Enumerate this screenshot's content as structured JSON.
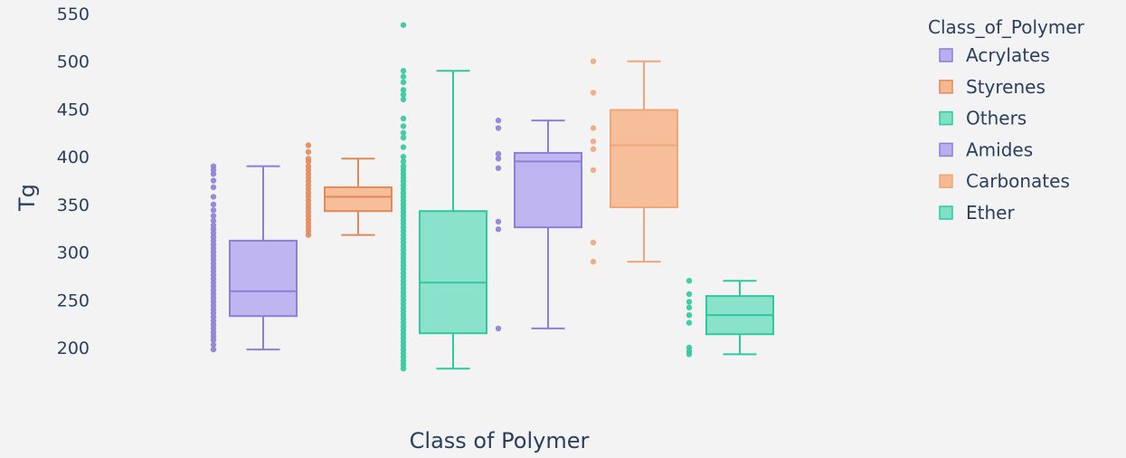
{
  "chart_data": {
    "type": "box",
    "xlabel": "Class of Polymer",
    "ylabel": "Tg",
    "ylim": [
      175,
      555
    ],
    "yticks": [
      200,
      250,
      300,
      350,
      400,
      450,
      500,
      550
    ],
    "grid": false,
    "legend": {
      "title": "Class_of_Polymer",
      "position": "top-right",
      "items": [
        "Acrylates",
        "Styrenes",
        "Others",
        "Amides",
        "Carbonates",
        "Ether"
      ]
    },
    "series": [
      {
        "name": "Acrylates",
        "color": "#8b7fd6",
        "fill": "#b9aef0",
        "min": 198,
        "q1": 233,
        "median": 259,
        "q3": 312,
        "max": 390,
        "points": [
          198,
          203,
          208,
          212,
          216,
          220,
          224,
          228,
          232,
          236,
          240,
          244,
          248,
          252,
          256,
          260,
          264,
          268,
          272,
          276,
          280,
          284,
          288,
          292,
          296,
          300,
          304,
          308,
          312,
          316,
          320,
          324,
          328,
          333,
          338,
          344,
          350,
          358,
          368,
          375,
          382,
          386,
          390
        ]
      },
      {
        "name": "Styrenes",
        "color": "#e08a5c",
        "fill": "#f6b88f",
        "min": 318,
        "q1": 343,
        "median": 358,
        "q3": 368,
        "max": 398,
        "points": [
          318,
          322,
          326,
          330,
          334,
          338,
          342,
          346,
          350,
          354,
          358,
          362,
          366,
          370,
          374,
          378,
          382,
          386,
          390,
          395,
          398,
          405,
          412
        ]
      },
      {
        "name": "Others",
        "color": "#2ec99e",
        "fill": "#7fe0c6",
        "min": 178,
        "q1": 215,
        "median": 268,
        "q3": 343,
        "max": 490,
        "points": [
          178,
          182,
          186,
          190,
          194,
          198,
          202,
          206,
          210,
          214,
          218,
          222,
          226,
          230,
          234,
          238,
          242,
          246,
          250,
          254,
          258,
          262,
          266,
          270,
          274,
          278,
          282,
          286,
          290,
          294,
          298,
          302,
          306,
          310,
          314,
          318,
          322,
          326,
          330,
          334,
          338,
          342,
          346,
          350,
          354,
          358,
          362,
          366,
          370,
          374,
          378,
          382,
          386,
          390,
          395,
          400,
          410,
          420,
          425,
          432,
          440,
          460,
          465,
          470,
          478,
          484,
          490,
          538
        ]
      },
      {
        "name": "Amides",
        "color": "#8b7fd6",
        "fill": "#b9aef0",
        "min": 220,
        "q1": 326,
        "median": 395,
        "q3": 404,
        "max": 438,
        "points": [
          220,
          324,
          332,
          388,
          398,
          403,
          430,
          438
        ]
      },
      {
        "name": "Carbonates",
        "color": "#f0a57a",
        "fill": "#f6b88f",
        "min": 290,
        "q1": 347,
        "median": 412,
        "q3": 449,
        "max": 500,
        "points": [
          290,
          310,
          386,
          408,
          416,
          430,
          467,
          500
        ]
      },
      {
        "name": "Ether",
        "color": "#2ec99e",
        "fill": "#7fe0c6",
        "min": 193,
        "q1": 214,
        "median": 234,
        "q3": 254,
        "max": 270,
        "points": [
          193,
          196,
          200,
          226,
          234,
          242,
          248,
          256,
          270
        ]
      }
    ]
  }
}
